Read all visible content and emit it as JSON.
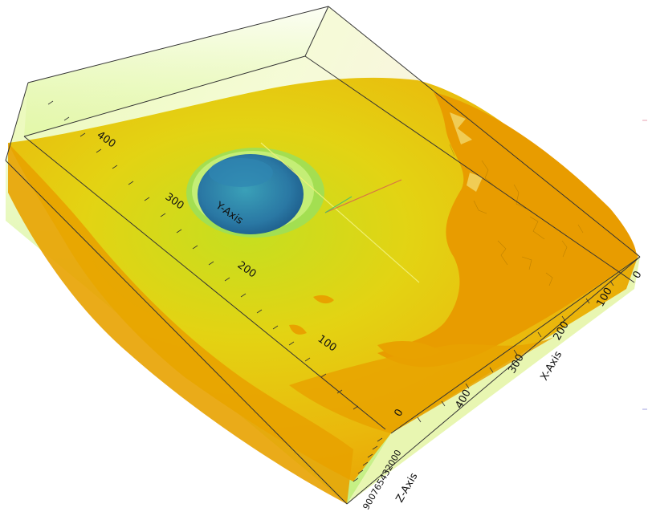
{
  "scene": {
    "axes": {
      "y_axis": {
        "title": "Y-Axis",
        "ticks": [
          "400",
          "300",
          "200",
          "100",
          "0"
        ]
      },
      "x_axis": {
        "title": "X-Axis",
        "ticks": [
          "0",
          "100",
          "200",
          "300",
          "400"
        ]
      },
      "z_axis": {
        "title": "Z-Axis",
        "tick_cluster": "900765432000"
      }
    },
    "colors": {
      "surface_orange": "#e8a000",
      "surface_yellow": "#e0d21a",
      "volume_green": "#c8f07a",
      "eye_blue": "#2a7aa8",
      "eye_rim_green": "#a8e85a",
      "box_edge": "#333333"
    }
  }
}
